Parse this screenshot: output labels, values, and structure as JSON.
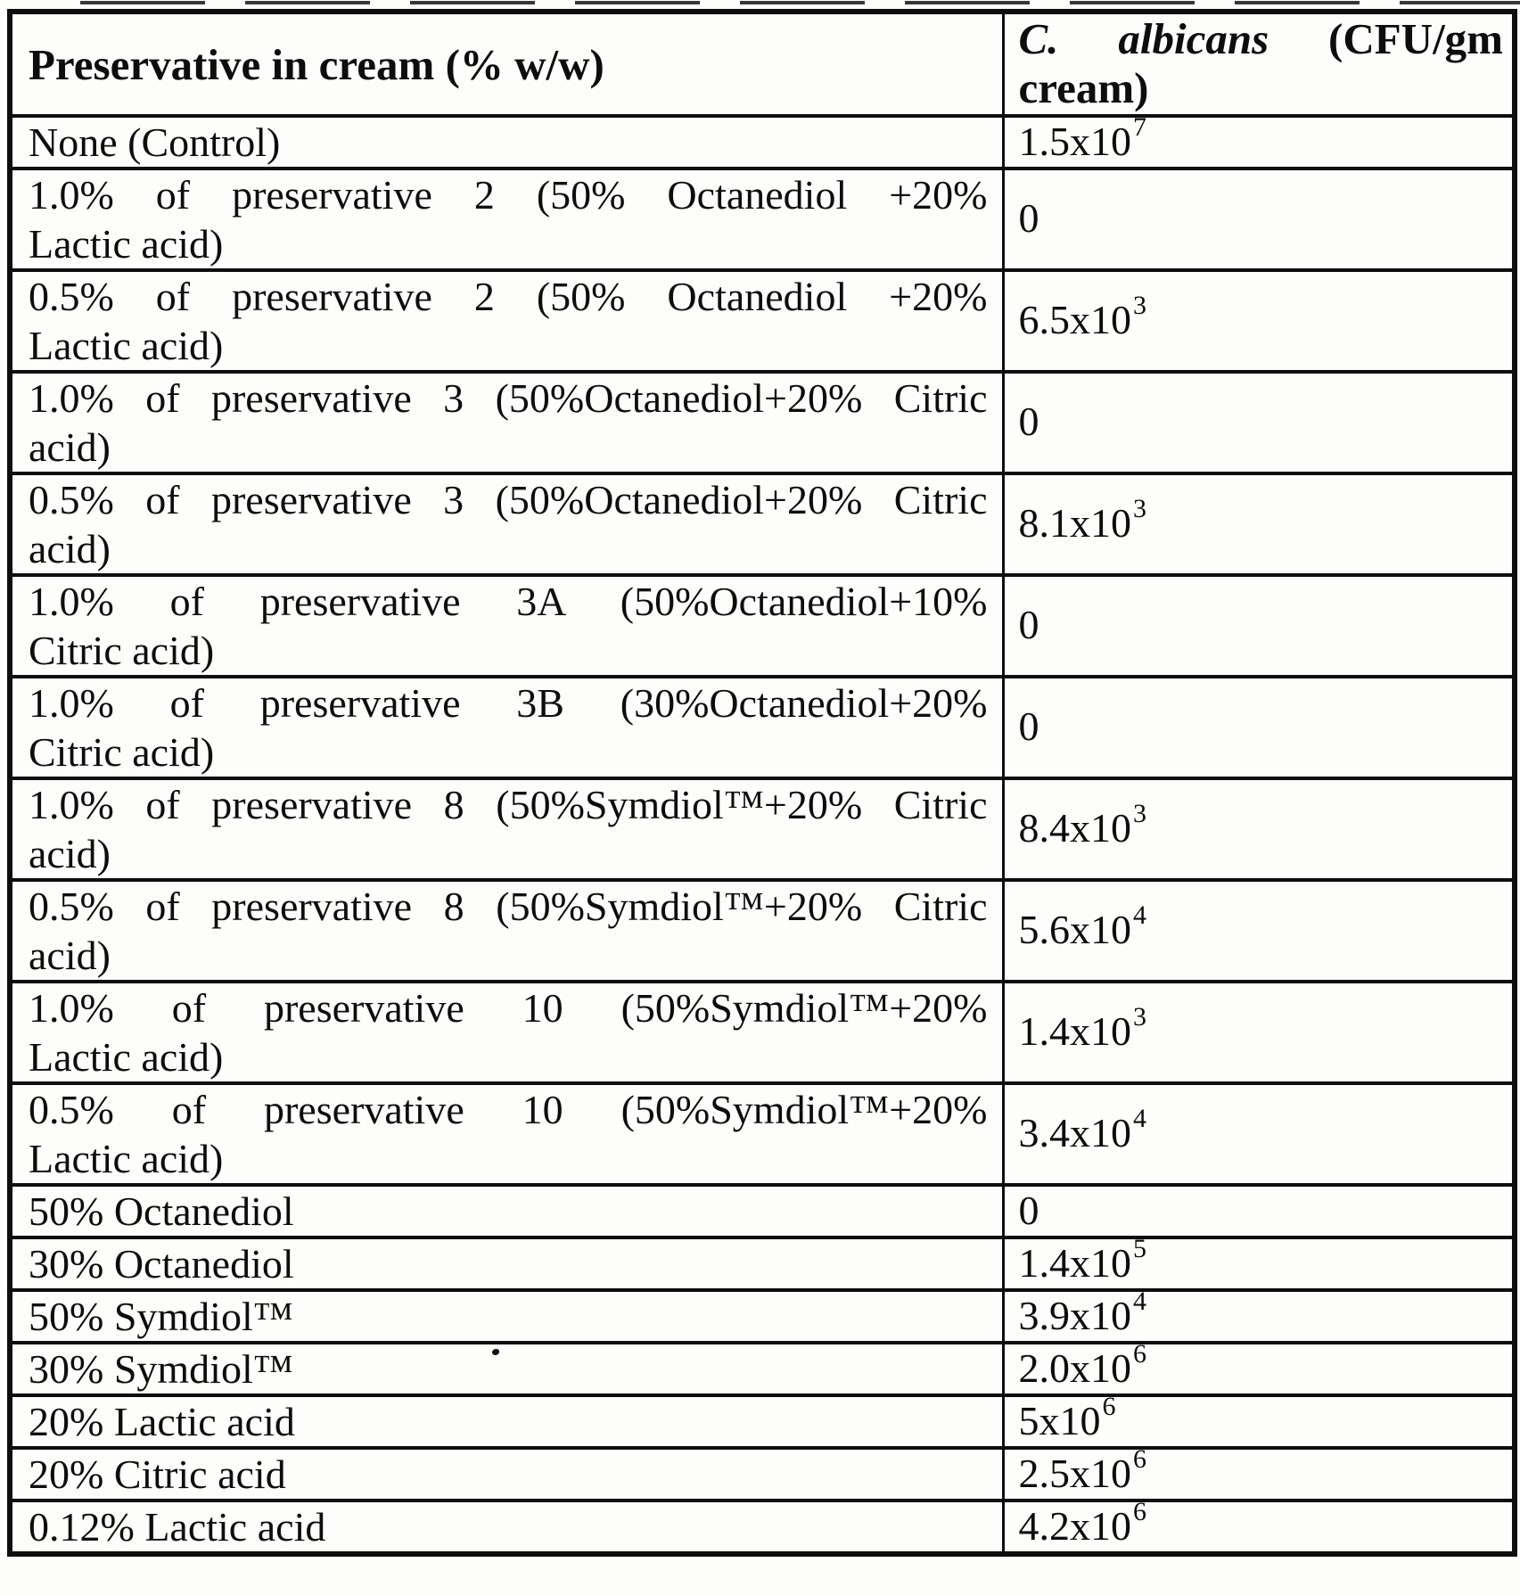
{
  "page": {
    "colors": {
      "ink": "#0d0d0d",
      "paper": "#fdfdfb"
    }
  },
  "table": {
    "header": {
      "col1": "Preservative in cream (% w/w)",
      "col2_species": "C. albicans",
      "col2_unit_line1": "(CFU/gm",
      "col2_unit_line2": "cream)"
    },
    "rows": [
      {
        "label": "None (Control)",
        "value": "1.5x10",
        "exp": "7"
      },
      {
        "label": [
          "1.0% of preservative 2 (50% Octanediol +20%",
          "Lactic acid)"
        ],
        "value": "0",
        "exp": ""
      },
      {
        "label": [
          "0.5% of preservative 2 (50% Octanediol +20%",
          "Lactic acid)"
        ],
        "value": "6.5x10",
        "exp": "3"
      },
      {
        "label": [
          "1.0% of preservative 3 (50%Octanediol+20% Citric",
          "acid)"
        ],
        "value": "0",
        "exp": ""
      },
      {
        "label": [
          "0.5% of preservative 3 (50%Octanediol+20% Citric",
          "acid)"
        ],
        "value": "8.1x10",
        "exp": "3"
      },
      {
        "label": [
          "1.0% of preservative 3A (50%Octanediol+10%",
          "Citric acid)"
        ],
        "value": "0",
        "exp": ""
      },
      {
        "label": [
          "1.0% of preservative 3B (30%Octanediol+20%",
          "Citric acid)"
        ],
        "value": "0",
        "exp": ""
      },
      {
        "label": [
          "1.0% of preservative 8 (50%Symdiol™+20% Citric",
          "acid)"
        ],
        "value": "8.4x10",
        "exp": "3"
      },
      {
        "label": [
          "0.5% of preservative 8 (50%Symdiol™+20% Citric",
          "acid)"
        ],
        "value": "5.6x10",
        "exp": "4"
      },
      {
        "label": [
          "1.0% of preservative 10 (50%Symdiol™+20%",
          "Lactic acid)"
        ],
        "value": "1.4x10",
        "exp": "3"
      },
      {
        "label": [
          "0.5% of preservative 10 (50%Symdiol™+20%",
          "Lactic acid)"
        ],
        "value": "3.4x10",
        "exp": "4"
      },
      {
        "label": "50% Octanediol",
        "value": "0",
        "exp": ""
      },
      {
        "label": "30% Octanediol",
        "value": "1.4x10",
        "exp": "5"
      },
      {
        "label": "50% Symdiol™",
        "value": "3.9x10",
        "exp": "4"
      },
      {
        "label": "30% Symdiol™",
        "value": "2.0x10",
        "exp": "6"
      },
      {
        "label": "20% Lactic acid",
        "value": "5x10",
        "exp": "6"
      },
      {
        "label": "20% Citric acid",
        "value": "2.5x10",
        "exp": "6"
      },
      {
        "label": "0.12% Lactic acid",
        "value": "4.2x10",
        "exp": "6"
      }
    ]
  }
}
